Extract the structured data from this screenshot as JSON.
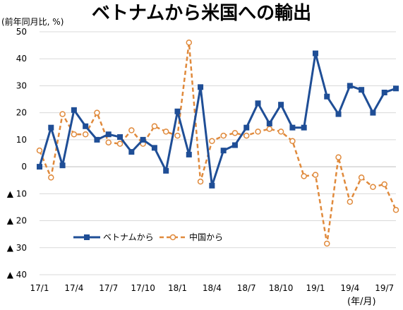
{
  "chart_data": {
    "type": "line",
    "title": "ベトナムから米国への輸出",
    "ylabel": "(前年同月比, %)",
    "xlabel": "(年/月)",
    "ylim": [
      -40,
      50
    ],
    "yticks": [
      50,
      40,
      30,
      20,
      10,
      0,
      -10,
      -20,
      -30,
      -40
    ],
    "ytick_labels": [
      "50",
      "40",
      "30",
      "20",
      "10",
      "0",
      "▲ 10",
      "▲ 20",
      "▲ 30",
      "▲ 40"
    ],
    "x": [
      "17/1",
      "17/2",
      "17/3",
      "17/4",
      "17/5",
      "17/6",
      "17/7",
      "17/8",
      "17/9",
      "17/10",
      "17/11",
      "17/12",
      "18/1",
      "18/2",
      "18/3",
      "18/4",
      "18/5",
      "18/6",
      "18/7",
      "18/8",
      "18/9",
      "18/10",
      "18/11",
      "18/12",
      "19/1",
      "19/2",
      "19/3",
      "19/4",
      "19/5",
      "19/6",
      "19/7",
      "19/8"
    ],
    "xtick_labels": [
      "17/1",
      "17/4",
      "17/7",
      "17/10",
      "18/1",
      "18/4",
      "18/7",
      "18/10",
      "19/1",
      "19/4",
      "19/7"
    ],
    "grid": true,
    "legend_position": "lower-left",
    "series": [
      {
        "name": "ベトナムから",
        "color": "#1F4E96",
        "marker": "square",
        "values": [
          0,
          14.5,
          0.5,
          21,
          15,
          10,
          12,
          11,
          5.5,
          10,
          7,
          -1.5,
          20.5,
          4.5,
          29.5,
          -7,
          6,
          8,
          14.5,
          23.5,
          16,
          23,
          14.5,
          14.5,
          42,
          26,
          19.5,
          30,
          28.5,
          20,
          27.5,
          29
        ]
      },
      {
        "name": "中国から",
        "color": "#E08A3C",
        "marker": "circle",
        "values": [
          6,
          -4,
          19.5,
          12,
          12,
          20,
          9,
          8.5,
          13.5,
          8.5,
          15,
          13,
          11.5,
          46,
          -5.5,
          9.5,
          11.5,
          12.5,
          11.5,
          13,
          14,
          13,
          9.5,
          -3.5,
          -3,
          -28.5,
          3.5,
          -13,
          -4,
          -7.5,
          -6.5,
          -16
        ]
      }
    ]
  }
}
